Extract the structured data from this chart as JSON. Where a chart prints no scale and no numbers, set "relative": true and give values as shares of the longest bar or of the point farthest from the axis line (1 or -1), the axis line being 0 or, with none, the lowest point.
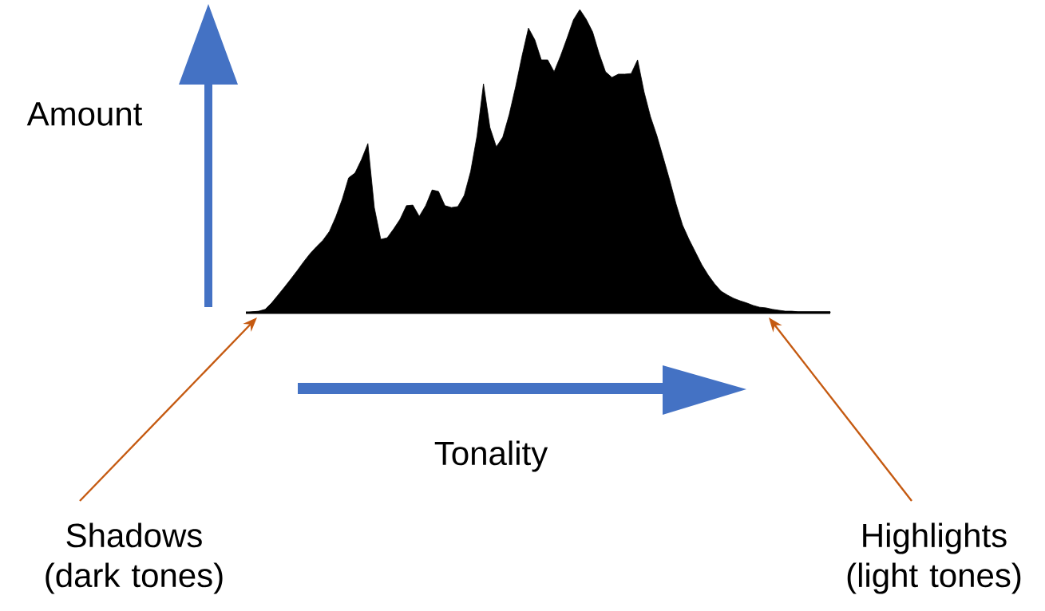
{
  "chart_data": {
    "type": "area",
    "relative": true,
    "color": "#000000",
    "categories": [
      null,
      null,
      null,
      null,
      null,
      null,
      null,
      null,
      null,
      null,
      null,
      null,
      null,
      null,
      null,
      null,
      null,
      null,
      null,
      null,
      null,
      null,
      null,
      null,
      null,
      null,
      null,
      null,
      null,
      null,
      null,
      null,
      null,
      null,
      null,
      null,
      null,
      null,
      null,
      null,
      null,
      null,
      null,
      null,
      null,
      null,
      null,
      null,
      null,
      null,
      null,
      null,
      null,
      null,
      null,
      null,
      null,
      null,
      null,
      null,
      null,
      null,
      null,
      null,
      null,
      null,
      null,
      null,
      null,
      null,
      null,
      null,
      null,
      null,
      null,
      null,
      null,
      null,
      null,
      null,
      null,
      null,
      null,
      null,
      null,
      null,
      null,
      null,
      null,
      null,
      null,
      null
    ],
    "values": [
      0,
      0.003,
      0.005,
      0.011,
      0.032,
      0.058,
      0.084,
      0.111,
      0.139,
      0.168,
      0.195,
      0.218,
      0.239,
      0.268,
      0.316,
      0.374,
      0.445,
      0.461,
      0.505,
      0.558,
      0.347,
      0.242,
      0.247,
      0.276,
      0.308,
      0.353,
      0.355,
      0.318,
      0.353,
      0.405,
      0.4,
      0.353,
      0.347,
      0.35,
      0.387,
      0.466,
      0.584,
      0.755,
      0.611,
      0.547,
      0.579,
      0.653,
      0.745,
      0.847,
      0.939,
      0.9,
      0.834,
      0.834,
      0.795,
      0.847,
      0.905,
      0.966,
      1,
      0.968,
      0.926,
      0.855,
      0.795,
      0.776,
      0.787,
      0.787,
      0.789,
      0.834,
      0.729,
      0.647,
      0.584,
      0.511,
      0.437,
      0.358,
      0.289,
      0.242,
      0.2,
      0.158,
      0.124,
      0.095,
      0.071,
      0.058,
      0.047,
      0.039,
      0.032,
      0.024,
      0.018,
      0.016,
      0.011,
      0.008,
      0.005,
      0.005,
      0.003,
      0.003,
      0.003,
      0.003,
      0.003,
      0.003
    ],
    "annotations": [
      "Amount",
      "Tonality",
      "Shadows (dark tones)",
      "Highlights (light tones)"
    ]
  }
}
